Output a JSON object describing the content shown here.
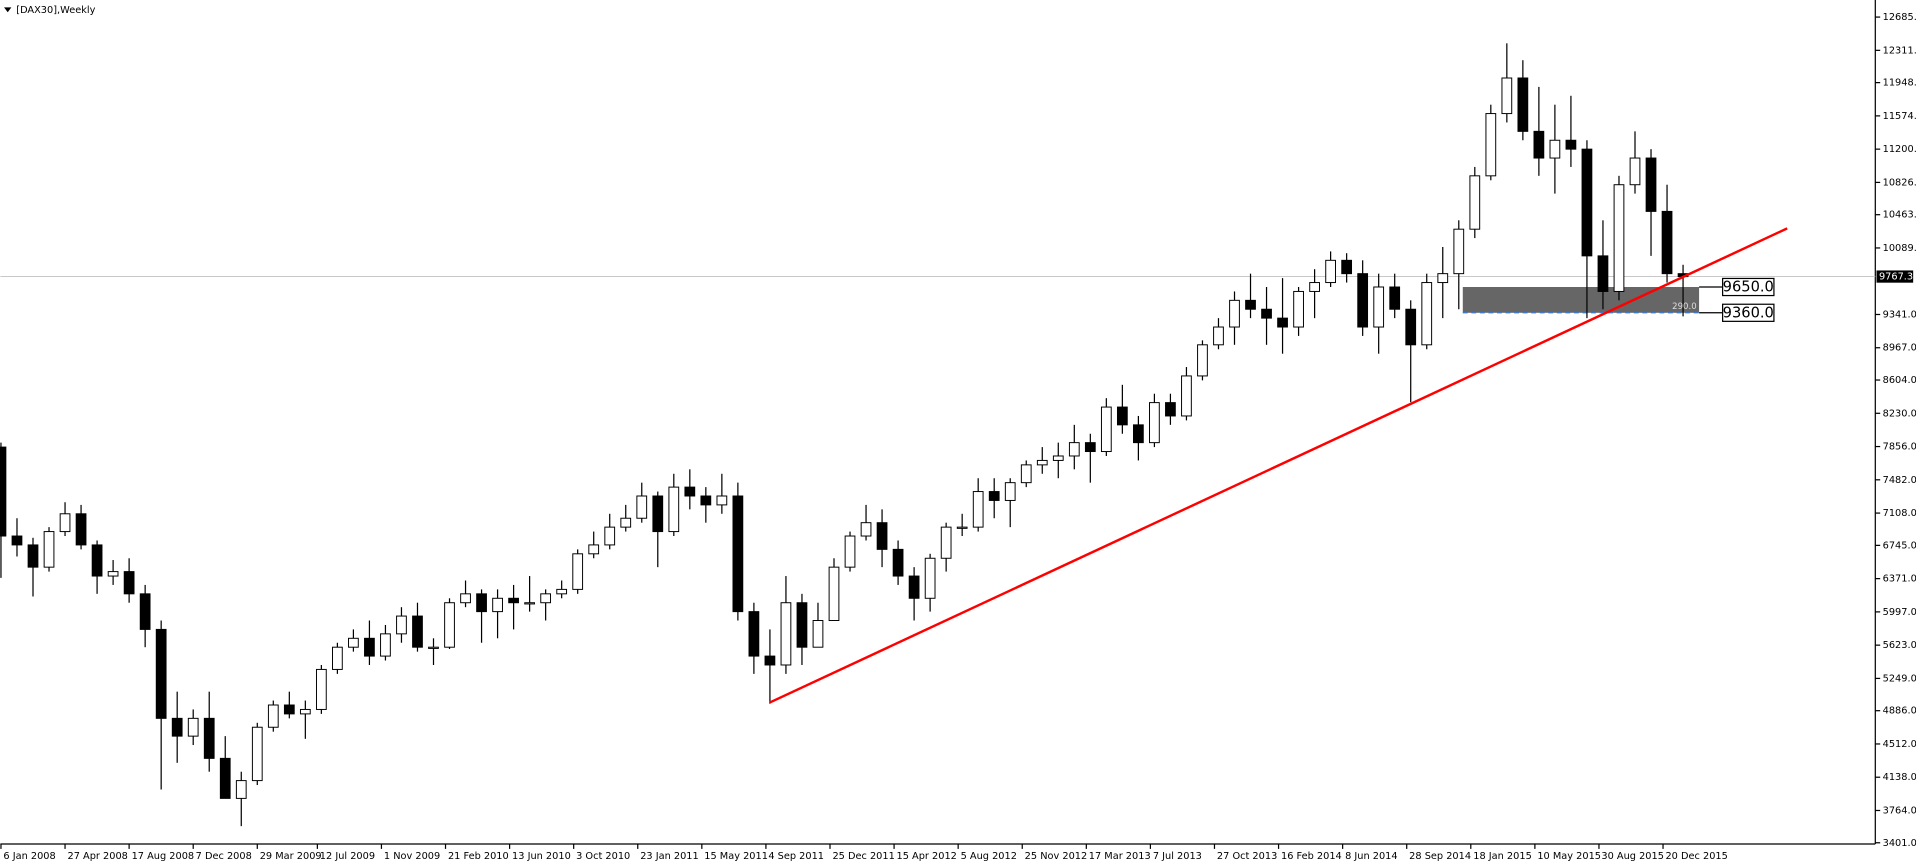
{
  "chart_data": {
    "type": "candlestick",
    "title": "[DAX30],Weekly",
    "x": [
      "2008-01-06",
      "2008-02-03",
      "2008-03-02",
      "2008-03-30",
      "2008-04-27",
      "2008-05-25",
      "2008-06-22",
      "2008-07-20",
      "2008-08-17",
      "2008-09-14",
      "2008-10-12",
      "2008-11-09",
      "2008-12-07",
      "2009-01-04",
      "2009-02-01",
      "2009-03-01",
      "2009-03-29",
      "2009-04-26",
      "2009-05-24",
      "2009-06-21",
      "2009-07-19",
      "2009-08-16",
      "2009-09-13",
      "2009-10-11",
      "2009-11-08",
      "2009-12-06",
      "2010-01-03",
      "2010-01-31",
      "2010-02-28",
      "2010-03-28",
      "2010-04-25",
      "2010-05-23",
      "2010-06-20",
      "2010-07-18",
      "2010-08-15",
      "2010-09-12",
      "2010-10-10",
      "2010-11-07",
      "2010-12-05",
      "2011-01-02",
      "2011-01-30",
      "2011-02-27",
      "2011-03-27",
      "2011-04-24",
      "2011-05-22",
      "2011-06-19",
      "2011-07-17",
      "2011-08-14",
      "2011-09-11",
      "2011-10-09",
      "2011-11-06",
      "2011-12-04",
      "2012-01-01",
      "2012-01-29",
      "2012-02-26",
      "2012-03-25",
      "2012-04-22",
      "2012-05-20",
      "2012-06-17",
      "2012-07-15",
      "2012-08-12",
      "2012-09-09",
      "2012-10-07",
      "2012-11-04",
      "2012-12-02",
      "2012-12-30",
      "2013-01-27",
      "2013-02-24",
      "2013-03-24",
      "2013-04-21",
      "2013-05-19",
      "2013-06-16",
      "2013-07-14",
      "2013-08-11",
      "2013-09-08",
      "2013-10-06",
      "2013-11-03",
      "2013-12-01",
      "2013-12-29",
      "2014-01-26",
      "2014-02-23",
      "2014-03-23",
      "2014-04-20",
      "2014-05-18",
      "2014-06-15",
      "2014-07-13",
      "2014-08-10",
      "2014-09-07",
      "2014-10-05",
      "2014-11-02",
      "2014-11-30",
      "2014-12-28",
      "2015-01-25",
      "2015-02-22",
      "2015-03-22",
      "2015-04-19",
      "2015-05-17",
      "2015-06-14",
      "2015-07-12",
      "2015-08-09",
      "2015-09-06",
      "2015-10-04",
      "2015-11-01",
      "2015-11-29",
      "2015-12-27",
      "2016-01-24"
    ],
    "open": [
      7850,
      6850,
      6750,
      6500,
      6900,
      7100,
      6750,
      6400,
      6450,
      6200,
      5800,
      4800,
      4600,
      4800,
      4350,
      3900,
      4100,
      4700,
      4950,
      4850,
      4900,
      5350,
      5600,
      5700,
      5500,
      5750,
      5950,
      5600,
      5600,
      6100,
      6200,
      6000,
      6150,
      6100,
      6100,
      6200,
      6250,
      6650,
      6750,
      6950,
      7050,
      7300,
      6900,
      7400,
      7300,
      7200,
      7300,
      6000,
      5500,
      5400,
      6100,
      5600,
      5900,
      6500,
      6850,
      7000,
      6700,
      6400,
      6150,
      6600,
      6950,
      6950,
      7350,
      7250,
      7450,
      7650,
      7700,
      7750,
      7900,
      7800,
      8300,
      8100,
      7900,
      8350,
      8200,
      8650,
      9000,
      9200,
      9500,
      9400,
      9300,
      9200,
      9600,
      9700,
      9950,
      9800,
      9200,
      9650,
      9400,
      9000,
      9700,
      9800,
      10300,
      10900,
      11600,
      12000,
      11400,
      11100,
      11300,
      11200,
      10000,
      9600,
      10800,
      11100,
      10500,
      9800
    ],
    "high": [
      7900,
      7050,
      6830,
      6950,
      7230,
      7200,
      6800,
      6580,
      6600,
      6300,
      5900,
      5100,
      4900,
      5100,
      4600,
      4200,
      4750,
      5000,
      5100,
      5000,
      5400,
      5650,
      5800,
      5900,
      5850,
      6050,
      6100,
      5700,
      6150,
      6350,
      6250,
      6250,
      6300,
      6400,
      6250,
      6350,
      6700,
      6900,
      7100,
      7200,
      7450,
      7350,
      7550,
      7600,
      7400,
      7550,
      7450,
      6100,
      5800,
      6400,
      6200,
      6100,
      6600,
      6900,
      7200,
      7150,
      6800,
      6500,
      6650,
      7000,
      7100,
      7500,
      7500,
      7500,
      7700,
      7850,
      7900,
      8100,
      8000,
      8400,
      8550,
      8200,
      8450,
      8450,
      8750,
      9050,
      9300,
      9600,
      9800,
      9650,
      9750,
      9650,
      9850,
      10050,
      10030,
      9950,
      9800,
      9800,
      9500,
      9800,
      10100,
      10400,
      11000,
      11700,
      12390,
      12200,
      11900,
      11700,
      11800,
      11300,
      10400,
      10900,
      11400,
      11200,
      10800,
      9900
    ],
    "low": [
      6380,
      6620,
      6170,
      6450,
      6850,
      6700,
      6200,
      6300,
      6100,
      5600,
      4000,
      4300,
      4500,
      4200,
      3900,
      3588,
      4050,
      4650,
      4800,
      4570,
      4850,
      5300,
      5550,
      5400,
      5450,
      5650,
      5550,
      5400,
      5580,
      6050,
      5650,
      5700,
      5800,
      6000,
      5900,
      6150,
      6200,
      6600,
      6700,
      6900,
      7000,
      6500,
      6850,
      7150,
      7000,
      7100,
      5900,
      5300,
      4965,
      5300,
      5400,
      5600,
      5900,
      6450,
      6800,
      6500,
      6300,
      5900,
      6000,
      6450,
      6850,
      6900,
      7050,
      6950,
      7400,
      7550,
      7500,
      7600,
      7450,
      7750,
      8000,
      7700,
      7850,
      8100,
      8150,
      8600,
      8950,
      9000,
      9300,
      9000,
      8900,
      9100,
      9300,
      9650,
      9700,
      9100,
      8900,
      9300,
      8355,
      8950,
      9300,
      9400,
      10200,
      10850,
      11500,
      11300,
      10900,
      10700,
      11000,
      9300,
      9400,
      9500,
      10700,
      10000,
      9700,
      9320
    ],
    "close": [
      6850,
      6750,
      6500,
      6900,
      7100,
      6750,
      6400,
      6450,
      6200,
      5800,
      4800,
      4600,
      4800,
      4350,
      3900,
      4100,
      4700,
      4950,
      4850,
      4900,
      5350,
      5600,
      5700,
      5500,
      5750,
      5950,
      5600,
      5600,
      6100,
      6200,
      6000,
      6150,
      6100,
      6100,
      6200,
      6250,
      6650,
      6750,
      6950,
      7050,
      7300,
      6900,
      7400,
      7300,
      7200,
      7300,
      6000,
      5500,
      5400,
      6100,
      5600,
      5900,
      6500,
      6850,
      7000,
      6700,
      6400,
      6150,
      6600,
      6950,
      6950,
      7350,
      7250,
      7450,
      7650,
      7700,
      7750,
      7900,
      7800,
      8300,
      8100,
      7900,
      8350,
      8200,
      8650,
      9000,
      9200,
      9500,
      9400,
      9300,
      9200,
      9600,
      9700,
      9950,
      9800,
      9200,
      9650,
      9400,
      9000,
      9700,
      9800,
      10300,
      10900,
      11600,
      12000,
      11400,
      11100,
      11300,
      11200,
      10000,
      9600,
      10800,
      11100,
      10500,
      9800,
      9767.3
    ],
    "up_color": "#ffffff",
    "down_color": "#000000",
    "xlim": [
      "2008-01-05",
      "2016-12-25"
    ],
    "ylim": [
      3387,
      12877
    ],
    "xticks": [
      {
        "value": "2008-01-06",
        "label": "6 Jan 2008"
      },
      {
        "value": "2008-04-27",
        "label": "27 Apr 2008"
      },
      {
        "value": "2008-08-17",
        "label": "17 Aug 2008"
      },
      {
        "value": "2008-12-07",
        "label": "7 Dec 2008"
      },
      {
        "value": "2009-03-29",
        "label": "29 Mar 2009"
      },
      {
        "value": "2009-07-12",
        "label": "12 Jul 2009"
      },
      {
        "value": "2009-11-01",
        "label": "1 Nov 2009"
      },
      {
        "value": "2010-02-21",
        "label": "21 Feb 2010"
      },
      {
        "value": "2010-06-13",
        "label": "13 Jun 2010"
      },
      {
        "value": "2010-10-03",
        "label": "3 Oct 2010"
      },
      {
        "value": "2011-01-23",
        "label": "23 Jan 2011"
      },
      {
        "value": "2011-05-15",
        "label": "15 May 2011"
      },
      {
        "value": "2011-09-04",
        "label": "4 Sep 2011"
      },
      {
        "value": "2011-12-25",
        "label": "25 Dec 2011"
      },
      {
        "value": "2012-04-15",
        "label": "15 Apr 2012"
      },
      {
        "value": "2012-08-05",
        "label": "5 Aug 2012"
      },
      {
        "value": "2012-11-25",
        "label": "25 Nov 2012"
      },
      {
        "value": "2013-03-17",
        "label": "17 Mar 2013"
      },
      {
        "value": "2013-07-07",
        "label": "7 Jul 2013"
      },
      {
        "value": "2013-10-27",
        "label": "27 Oct 2013"
      },
      {
        "value": "2014-02-16",
        "label": "16 Feb 2014"
      },
      {
        "value": "2014-06-08",
        "label": "8 Jun 2014"
      },
      {
        "value": "2014-09-28",
        "label": "28 Sep 2014"
      },
      {
        "value": "2015-01-18",
        "label": "18 Jan 2015"
      },
      {
        "value": "2015-05-10",
        "label": "10 May 2015"
      },
      {
        "value": "2015-08-30",
        "label": "30 Aug 2015"
      },
      {
        "value": "2015-12-20",
        "label": "20 Dec 2015"
      }
    ],
    "yticks": [
      {
        "value": 12685,
        "label": "12685.0"
      },
      {
        "value": 12311,
        "label": "12311.0"
      },
      {
        "value": 11948,
        "label": "11948.0"
      },
      {
        "value": 11574,
        "label": "11574.0"
      },
      {
        "value": 11200,
        "label": "11200.0"
      },
      {
        "value": 10826,
        "label": "10826.0"
      },
      {
        "value": 10463,
        "label": "10463.0"
      },
      {
        "value": 10089,
        "label": "10089.0"
      },
      {
        "value": 9341,
        "label": "9341.0"
      },
      {
        "value": 8967,
        "label": "8967.0"
      },
      {
        "value": 8604,
        "label": "8604.0"
      },
      {
        "value": 8230,
        "label": "8230.0"
      },
      {
        "value": 7856,
        "label": "7856.0"
      },
      {
        "value": 7482,
        "label": "7482.0"
      },
      {
        "value": 7108,
        "label": "7108.0"
      },
      {
        "value": 6745,
        "label": "6745.0"
      },
      {
        "value": 6371,
        "label": "6371.0"
      },
      {
        "value": 5997,
        "label": "5997.0"
      },
      {
        "value": 5623,
        "label": "5623.0"
      },
      {
        "value": 5249,
        "label": "5249.0"
      },
      {
        "value": 4886,
        "label": "4886.0"
      },
      {
        "value": 4512,
        "label": "4512.0"
      },
      {
        "value": 4138,
        "label": "4138.0"
      },
      {
        "value": 3764,
        "label": "3764.0"
      },
      {
        "value": 3401,
        "label": "3401.0"
      }
    ],
    "last_price": 9767.3,
    "trendline": {
      "x": [
        "2011-09-11",
        "2016-07-24"
      ],
      "y": [
        4979,
        10309
      ],
      "color": "#ff0000"
    },
    "zone": {
      "x": [
        "2015-01-04",
        "2016-02-21"
      ],
      "top": {
        "value": 9650,
        "label": "9650.0"
      },
      "bottom": {
        "value": 9360,
        "label": "9360.0"
      },
      "text": "290.0",
      "color": "#666666"
    }
  }
}
